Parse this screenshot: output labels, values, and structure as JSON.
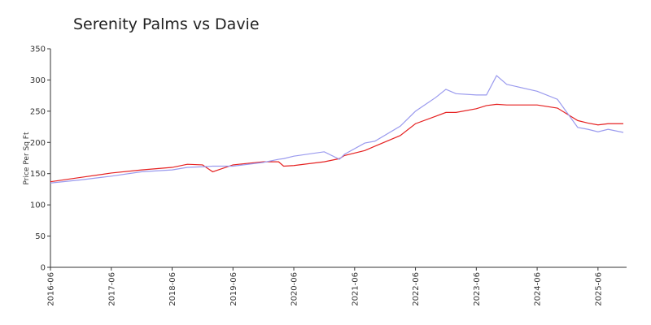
{
  "chart_data": {
    "type": "line",
    "title": "Serenity Palms vs Davie",
    "y_label": "Price Per Sq Ft",
    "x": [
      "2016-06",
      "2016-12",
      "2017-06",
      "2017-12",
      "2018-06",
      "2018-09",
      "2018-12",
      "2019-02",
      "2019-06",
      "2019-12",
      "2020-03",
      "2020-04",
      "2020-06",
      "2020-12",
      "2021-03",
      "2021-04",
      "2021-08",
      "2021-10",
      "2022-03",
      "2022-06",
      "2022-10",
      "2022-12",
      "2023-02",
      "2023-06",
      "2023-08",
      "2023-10",
      "2023-12",
      "2024-06",
      "2024-10",
      "2025-02",
      "2025-04",
      "2025-06",
      "2025-08",
      "2025-11"
    ],
    "series": [
      {
        "color": "#e52020",
        "values": [
          137,
          144,
          151,
          156,
          160,
          165,
          164,
          153,
          164,
          169,
          169,
          162,
          163,
          169,
          174,
          179,
          187,
          194,
          211,
          230,
          242,
          248,
          248,
          254,
          259,
          261,
          260,
          260,
          255,
          235,
          231,
          228,
          230,
          230
        ]
      },
      {
        "color": "#9a9aee",
        "values": [
          135,
          140,
          146,
          153,
          156,
          160,
          161,
          162,
          162,
          168,
          173,
          174,
          178,
          185,
          173,
          181,
          199,
          202,
          226,
          250,
          272,
          285,
          278,
          276,
          276,
          307,
          293,
          282,
          269,
          224,
          221,
          217,
          221,
          216
        ]
      }
    ],
    "xticks": [
      "2016-06",
      "2017-06",
      "2018-06",
      "2019-06",
      "2020-06",
      "2021-06",
      "2022-06",
      "2023-06",
      "2024-06",
      "2025-06"
    ],
    "ylim": [
      0,
      350
    ],
    "yticks": [
      0,
      50,
      100,
      150,
      200,
      250,
      300,
      350
    ],
    "grid": false
  }
}
